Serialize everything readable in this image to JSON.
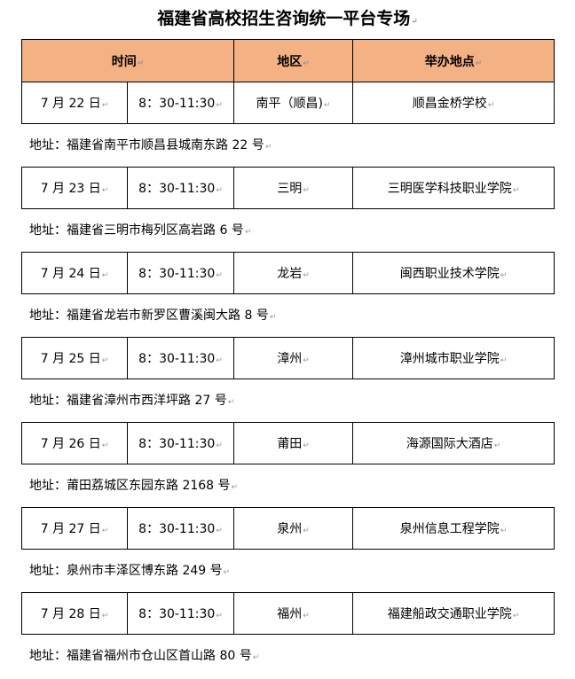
{
  "title": "福建省高校招生咨询统一平台专场",
  "header": {
    "time": "时间",
    "region": "地区",
    "venue": "举办地点"
  },
  "address_label": "地址：",
  "sessions": [
    {
      "date": "7 月 22 日",
      "time": "8：30-11:30",
      "region": "南平（顺昌)",
      "venue": "顺昌金桥学校",
      "address": "福建省南平市顺昌县城南东路 22 号"
    },
    {
      "date": "7 月 23 日",
      "time": "8：30-11:30",
      "region": "三明",
      "venue": "三明医学科技职业学院",
      "address": "福建省三明市梅列区高岩路 6 号"
    },
    {
      "date": "7 月 24 日",
      "time": "8：30-11:30",
      "region": "龙岩",
      "venue": "闽西职业技术学院",
      "address": "福建省龙岩市新罗区曹溪闽大路 8 号"
    },
    {
      "date": "7 月 25 日",
      "time": "8：30-11:30",
      "region": "漳州",
      "venue": "漳州城市职业学院",
      "address": "福建省漳州市西洋坪路 27 号"
    },
    {
      "date": "7 月 26 日",
      "time": "8：30-11:30",
      "region": "莆田",
      "venue": "海源国际大酒店",
      "address": "莆田荔城区东园东路 2168 号"
    },
    {
      "date": "7 月 27 日",
      "time": "8：30-11:30",
      "region": "泉州",
      "venue": "泉州信息工程学院",
      "address": "泉州市丰泽区博东路 249 号"
    },
    {
      "date": "7 月 28 日",
      "time": "8：30-11:30",
      "region": "福州",
      "venue": "福建船政交通职业学院",
      "address": "福建省福州市仓山区首山路 80 号"
    }
  ],
  "colors": {
    "header_bg": "#f4b183"
  }
}
